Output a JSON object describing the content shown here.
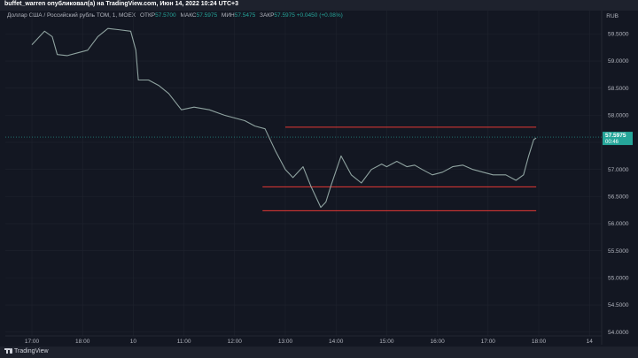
{
  "header": {
    "publish_line": "buffet_warren опубликовал(а) на TradingView.com, Июн 14, 2022 10:24 UTC+3"
  },
  "legend": {
    "symbol": "Доллар США / Российский рубль TOM, 1, MOEX",
    "open_label": "ОТКР",
    "open_value": "57.5700",
    "high_label": "МАКС",
    "high_value": "57.5975",
    "low_label": "МИН",
    "low_value": "57.5475",
    "close_label": "ЗАКР",
    "close_value": "57.5975",
    "change": "+0.0450 (+0.08%)"
  },
  "currency": "RUB",
  "footer": {
    "logo_text": "TradingView"
  },
  "colors": {
    "background": "#131722",
    "up": "#26a69a",
    "down": "#ef5350",
    "level_line": "#e53935",
    "grid": "#1f232e",
    "price_badge": "#26a69a"
  },
  "chart_data": {
    "type": "line",
    "ylim": [
      53.93,
      59.93
    ],
    "y_ticks": [
      "59.5000",
      "59.0000",
      "58.5000",
      "58.0000",
      "57.5000",
      "57.0000",
      "56.5000",
      "56.0000",
      "55.5000",
      "55.0000",
      "54.5000",
      "54.0000"
    ],
    "y_tick_values": [
      59.5,
      59.0,
      58.5,
      58.0,
      57.5,
      57.0,
      56.5,
      56.0,
      55.5,
      55.0,
      54.5,
      54.0
    ],
    "x_ticks": [
      "17:00",
      "18:00",
      "10",
      "11:00",
      "12:00",
      "13:00",
      "14:00",
      "15:00",
      "16:00",
      "17:00",
      "18:00",
      "14"
    ],
    "price": [
      [
        0,
        59.3
      ],
      [
        0.25,
        59.55
      ],
      [
        0.4,
        59.45
      ],
      [
        0.5,
        59.12
      ],
      [
        0.7,
        59.1
      ],
      [
        0.9,
        59.15
      ],
      [
        1.1,
        59.2
      ],
      [
        1.3,
        59.45
      ],
      [
        1.5,
        59.6
      ],
      [
        1.7,
        59.58
      ],
      [
        1.95,
        59.55
      ],
      [
        2.05,
        59.2
      ],
      [
        2.1,
        58.65
      ],
      [
        2.3,
        58.65
      ],
      [
        2.5,
        58.55
      ],
      [
        2.7,
        58.4
      ],
      [
        2.95,
        58.1
      ],
      [
        3.2,
        58.15
      ],
      [
        3.5,
        58.1
      ],
      [
        3.8,
        58.0
      ],
      [
        4.2,
        57.9
      ],
      [
        4.4,
        57.8
      ],
      [
        4.6,
        57.75
      ],
      [
        4.8,
        57.35
      ],
      [
        5.0,
        57.0
      ],
      [
        5.15,
        56.85
      ],
      [
        5.35,
        57.05
      ],
      [
        5.5,
        56.7
      ],
      [
        5.7,
        56.3
      ],
      [
        5.8,
        56.4
      ],
      [
        5.9,
        56.7
      ],
      [
        6.1,
        57.25
      ],
      [
        6.3,
        56.9
      ],
      [
        6.5,
        56.75
      ],
      [
        6.7,
        57.0
      ],
      [
        6.9,
        57.1
      ],
      [
        7.0,
        57.05
      ],
      [
        7.2,
        57.15
      ],
      [
        7.4,
        57.05
      ],
      [
        7.55,
        57.08
      ],
      [
        7.7,
        57.0
      ],
      [
        7.9,
        56.9
      ],
      [
        8.1,
        56.95
      ],
      [
        8.3,
        57.05
      ],
      [
        8.5,
        57.08
      ],
      [
        8.7,
        57.0
      ],
      [
        8.9,
        56.95
      ],
      [
        9.1,
        56.9
      ],
      [
        9.35,
        56.9
      ],
      [
        9.55,
        56.8
      ],
      [
        9.7,
        56.9
      ],
      [
        9.8,
        57.25
      ],
      [
        9.9,
        57.55
      ],
      [
        9.95,
        57.58
      ]
    ],
    "last_price": "57.5975",
    "countdown": "00:46",
    "levels": [
      {
        "value": 57.78,
        "x_from": 5.0,
        "x_to": 9.95
      },
      {
        "value": 56.68,
        "x_from": 4.55,
        "x_to": 9.95
      },
      {
        "value": 56.24,
        "x_from": 4.55,
        "x_to": 9.95
      }
    ]
  }
}
